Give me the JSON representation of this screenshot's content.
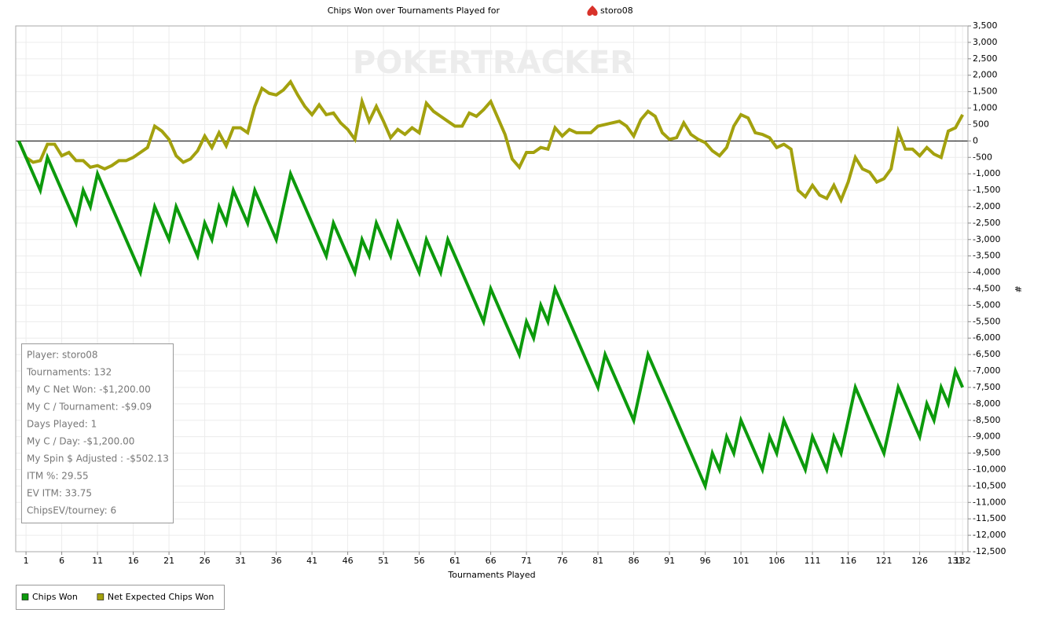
{
  "chart_data": {
    "type": "line",
    "title": "Chips Won over Tournaments Played for",
    "player": "storo08",
    "watermark": "POKERTRACKER",
    "xlabel": "Tournaments Played",
    "ylabel": "#",
    "x": [
      0,
      1,
      2,
      3,
      4,
      5,
      6,
      7,
      8,
      9,
      10,
      11,
      12,
      13,
      14,
      15,
      16,
      17,
      18,
      19,
      20,
      21,
      22,
      23,
      24,
      25,
      26,
      27,
      28,
      29,
      30,
      31,
      32,
      33,
      34,
      35,
      36,
      37,
      38,
      39,
      40,
      41,
      42,
      43,
      44,
      45,
      46,
      47,
      48,
      49,
      50,
      51,
      52,
      53,
      54,
      55,
      56,
      57,
      58,
      59,
      60,
      61,
      62,
      63,
      64,
      65,
      66,
      67,
      68,
      69,
      70,
      71,
      72,
      73,
      74,
      75,
      76,
      77,
      78,
      79,
      80,
      81,
      82,
      83,
      84,
      85,
      86,
      87,
      88,
      89,
      90,
      91,
      92,
      93,
      94,
      95,
      96,
      97,
      98,
      99,
      100,
      101,
      102,
      103,
      104,
      105,
      106,
      107,
      108,
      109,
      110,
      111,
      112,
      113,
      114,
      115,
      116,
      117,
      118,
      119,
      120,
      121,
      122,
      123,
      124,
      125,
      126,
      127,
      128,
      129,
      130,
      131,
      132
    ],
    "series": [
      {
        "name": "Chips Won",
        "color": "#0c9a0c",
        "values": [
          0,
          -500,
          -1000,
          -1500,
          -500,
          -1000,
          -1500,
          -2000,
          -2500,
          -1500,
          -2000,
          -1000,
          -1500,
          -2000,
          -2500,
          -3000,
          -3500,
          -4000,
          -3000,
          -2000,
          -2500,
          -3000,
          -2000,
          -2500,
          -3000,
          -3500,
          -2500,
          -3000,
          -2000,
          -2500,
          -1500,
          -2000,
          -2500,
          -1500,
          -2000,
          -2500,
          -3000,
          -2000,
          -1000,
          -1500,
          -2000,
          -2500,
          -3000,
          -3500,
          -2500,
          -3000,
          -3500,
          -4000,
          -3000,
          -3500,
          -2500,
          -3000,
          -3500,
          -2500,
          -3000,
          -3500,
          -4000,
          -3000,
          -3500,
          -4000,
          -3000,
          -3500,
          -4000,
          -4500,
          -5000,
          -5500,
          -4500,
          -5000,
          -5500,
          -6000,
          -6500,
          -5500,
          -6000,
          -5000,
          -5500,
          -4500,
          -5000,
          -5500,
          -6000,
          -6500,
          -7000,
          -7500,
          -6500,
          -7000,
          -7500,
          -8000,
          -8500,
          -7500,
          -6500,
          -7000,
          -7500,
          -8000,
          -8500,
          -9000,
          -9500,
          -10000,
          -10500,
          -9500,
          -10000,
          -9000,
          -9500,
          -8500,
          -9000,
          -9500,
          -10000,
          -9000,
          -9500,
          -8500,
          -9000,
          -9500,
          -10000,
          -9000,
          -9500,
          -10000,
          -9000,
          -9500,
          -8500,
          -7500,
          -8000,
          -8500,
          -9000,
          -9500,
          -8500,
          -7500,
          -8000,
          -8500,
          -9000,
          -8000,
          -8500,
          -7500,
          -8000,
          -7000,
          -7500
        ]
      },
      {
        "name": "Net Expected Chips Won",
        "color": "#a3a10e",
        "values": [
          0,
          -500,
          -650,
          -600,
          -100,
          -100,
          -450,
          -350,
          -600,
          -600,
          -800,
          -750,
          -850,
          -750,
          -600,
          -600,
          -500,
          -350,
          -200,
          450,
          300,
          50,
          -450,
          -650,
          -550,
          -300,
          150,
          -200,
          250,
          -150,
          400,
          400,
          250,
          1050,
          1600,
          1450,
          1400,
          1550,
          1800,
          1400,
          1050,
          800,
          1100,
          800,
          850,
          550,
          350,
          50,
          1200,
          600,
          1050,
          600,
          100,
          350,
          200,
          400,
          250,
          1150,
          900,
          750,
          600,
          450,
          450,
          850,
          750,
          950,
          1200,
          700,
          200,
          -550,
          -800,
          -350,
          -350,
          -200,
          -250,
          400,
          150,
          350,
          250,
          250,
          250,
          450,
          500,
          550,
          600,
          450,
          150,
          650,
          900,
          750,
          250,
          50,
          100,
          550,
          200,
          50,
          -50,
          -300,
          -450,
          -200,
          450,
          800,
          700,
          250,
          200,
          100,
          -200,
          -100,
          -250,
          -1500,
          -1700,
          -1350,
          -1650,
          -1750,
          -1350,
          -1800,
          -1250,
          -500,
          -850,
          -950,
          -1250,
          -1150,
          -850,
          300,
          -250,
          -250,
          -450,
          -200,
          -400,
          -500,
          300,
          400,
          800
        ]
      }
    ],
    "xlim": [
      -0.44,
      132.75
    ],
    "xticks": [
      1,
      6,
      11,
      16,
      21,
      26,
      31,
      36,
      41,
      46,
      51,
      56,
      61,
      66,
      71,
      76,
      81,
      86,
      91,
      96,
      101,
      106,
      111,
      116,
      121,
      126,
      131,
      132
    ],
    "ylim": [
      -12500,
      3500
    ],
    "yticks": [
      {
        "value": 3500,
        "label": "3,500"
      },
      {
        "value": 3000,
        "label": "3,000"
      },
      {
        "value": 2500,
        "label": "2,500"
      },
      {
        "value": 2000,
        "label": "2,000"
      },
      {
        "value": 1500,
        "label": "1,500"
      },
      {
        "value": 1000,
        "label": "1,000"
      },
      500,
      0,
      -500,
      {
        "value": -1000,
        "label": "-1,000"
      },
      {
        "value": -1500,
        "label": "-1,500"
      },
      {
        "value": -2000,
        "label": "-2,000"
      },
      {
        "value": -2500,
        "label": "-2,500"
      },
      {
        "value": -3000,
        "label": "-3,000"
      },
      {
        "value": -3500,
        "label": "-3,500"
      },
      {
        "value": -4000,
        "label": "-4,000"
      },
      {
        "value": -4500,
        "label": "-4,500"
      },
      {
        "value": -5000,
        "label": "-5,000"
      },
      {
        "value": -5500,
        "label": "-5,500"
      },
      {
        "value": -6000,
        "label": "-6,000"
      },
      {
        "value": -6500,
        "label": "-6,500"
      },
      {
        "value": -7000,
        "label": "-7,000"
      },
      {
        "value": -7500,
        "label": "-7,500"
      },
      {
        "value": -8000,
        "label": "-8,000"
      },
      {
        "value": -8500,
        "label": "-8,500"
      },
      {
        "value": -9000,
        "label": "-9,000"
      },
      {
        "value": -9500,
        "label": "-9,500"
      },
      {
        "value": -10000,
        "label": "-10,000"
      },
      {
        "value": -10500,
        "label": "-10,500"
      },
      {
        "value": -11000,
        "label": "-11,000"
      },
      {
        "value": -11500,
        "label": "-11,500"
      },
      {
        "value": -12000,
        "label": "-12,000"
      },
      {
        "value": -12500,
        "label": "-12,500"
      }
    ],
    "grid": true,
    "legend": "bottom-left",
    "stats": [
      "Player: storo08",
      "Tournaments: 132",
      "My C Net Won: -$1,200.00",
      "My C / Tournament: -$9.09",
      "Days Played: 1",
      "My C / Day: -$1,200.00",
      "My Spin $ Adjusted : -$502.13",
      "ITM %: 29.55",
      "EV ITM: 33.75",
      "ChipsEV/tourney: 6"
    ]
  }
}
